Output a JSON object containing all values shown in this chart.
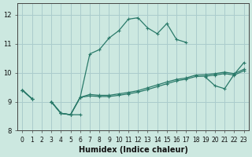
{
  "xlabel": "Humidex (Indice chaleur)",
  "ylabel": "",
  "bg_color": "#cce8e0",
  "grid_color": "#aacccc",
  "line_color": "#2a7a6a",
  "xlim": [
    -0.5,
    23.5
  ],
  "ylim": [
    8.0,
    12.4
  ],
  "yticks": [
    8,
    9,
    10,
    11,
    12
  ],
  "xticks": [
    0,
    1,
    2,
    3,
    4,
    5,
    6,
    7,
    8,
    9,
    10,
    11,
    12,
    13,
    14,
    15,
    16,
    17,
    18,
    19,
    20,
    21,
    22,
    23
  ],
  "hours": [
    0,
    1,
    2,
    3,
    4,
    5,
    6,
    7,
    8,
    9,
    10,
    11,
    12,
    13,
    14,
    15,
    16,
    17,
    18,
    19,
    20,
    21,
    22,
    23
  ],
  "curve_main": [
    9.4,
    9.1,
    null,
    9.0,
    8.6,
    8.55,
    9.15,
    10.65,
    10.8,
    11.2,
    11.45,
    11.85,
    11.9,
    11.55,
    11.35,
    11.7,
    11.15,
    11.05,
    null,
    9.85,
    9.55,
    9.45,
    9.95,
    10.35
  ],
  "curve_low": [
    9.4,
    9.1,
    null,
    9.0,
    8.6,
    8.55,
    8.55,
    null,
    null,
    null,
    null,
    null,
    null,
    null,
    null,
    null,
    null,
    null,
    null,
    null,
    null,
    null,
    null,
    null
  ],
  "curve_trend1": [
    9.4,
    9.1,
    null,
    9.0,
    8.6,
    8.55,
    9.15,
    9.2,
    9.18,
    9.18,
    9.22,
    9.27,
    9.33,
    9.42,
    9.52,
    9.62,
    9.72,
    9.78,
    9.87,
    9.88,
    9.92,
    9.97,
    9.92,
    10.07
  ],
  "curve_trend2": [
    9.4,
    9.1,
    null,
    9.0,
    8.6,
    8.55,
    9.15,
    9.25,
    9.22,
    9.22,
    9.27,
    9.32,
    9.38,
    9.48,
    9.58,
    9.68,
    9.77,
    9.82,
    9.92,
    9.93,
    9.97,
    10.02,
    9.97,
    10.12
  ]
}
